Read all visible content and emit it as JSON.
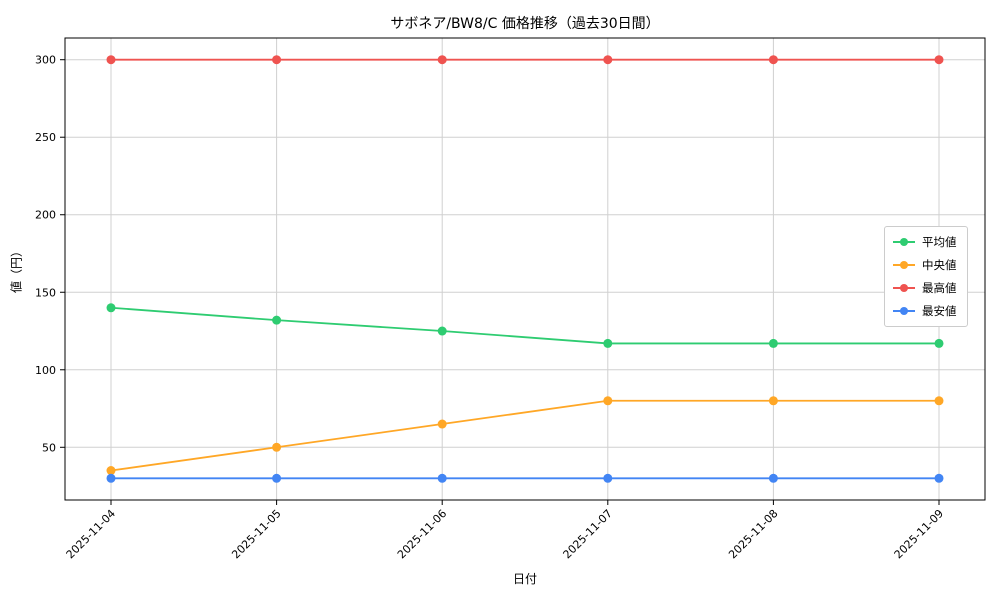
{
  "chart_data": {
    "type": "line",
    "title": "サボネア/BW8/C 価格推移（過去30日間）",
    "xlabel": "日付",
    "ylabel": "値（円）",
    "categories": [
      "2025-11-04",
      "2025-11-05",
      "2025-11-06",
      "2025-11-07",
      "2025-11-08",
      "2025-11-09"
    ],
    "series": [
      {
        "name": "平均値",
        "color": "#2ecc71",
        "values": [
          140,
          132,
          125,
          117,
          117,
          117
        ]
      },
      {
        "name": "中央値",
        "color": "#ffa726",
        "values": [
          35,
          50,
          65,
          80,
          80,
          80
        ]
      },
      {
        "name": "最高値",
        "color": "#ef5350",
        "values": [
          300,
          300,
          300,
          300,
          300,
          300
        ]
      },
      {
        "name": "最安値",
        "color": "#4285f4",
        "values": [
          30,
          30,
          30,
          30,
          30,
          30
        ]
      }
    ],
    "yticks": [
      50,
      100,
      150,
      200,
      250,
      300
    ],
    "ylim": [
      16,
      314
    ],
    "grid": true,
    "legend_position": "center-right",
    "colors": {
      "grid": "#d0d0d0",
      "axis": "#000000",
      "background": "#ffffff"
    }
  }
}
